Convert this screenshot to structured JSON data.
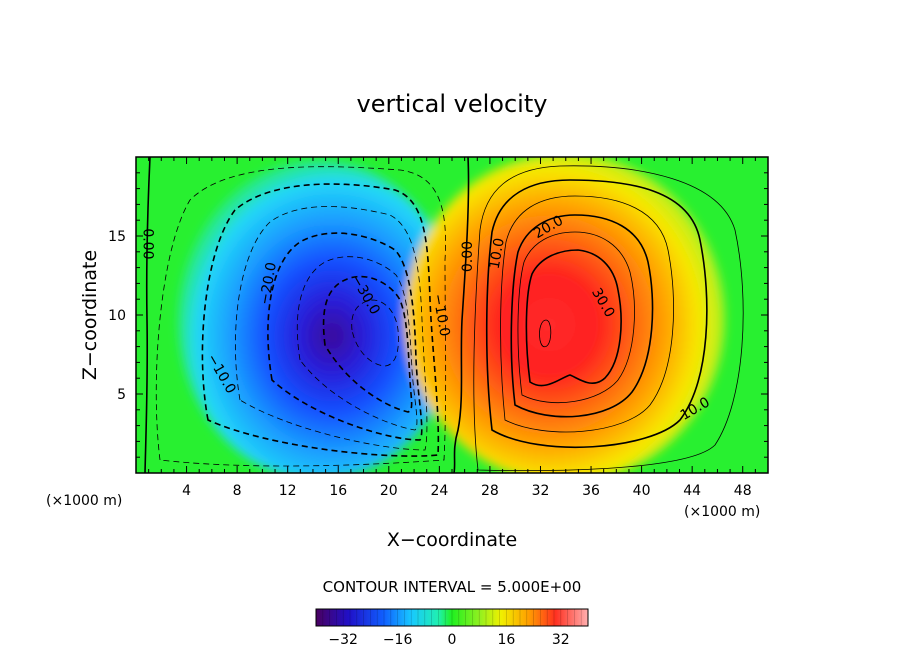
{
  "chart_data": {
    "type": "heatmap",
    "title": "vertical velocity",
    "xlabel": "X−coordinate",
    "ylabel": "Z−coordinate",
    "x_unit_left": "(×1000 m)",
    "x_unit_right": "(×1000 m)",
    "xlim": [
      0,
      50
    ],
    "ylim": [
      0,
      20
    ],
    "x_ticks": [
      "4",
      "8",
      "12",
      "16",
      "20",
      "24",
      "28",
      "32",
      "36",
      "40",
      "44",
      "48"
    ],
    "y_ticks": [
      "5",
      "10",
      "15"
    ],
    "contour_interval_text": "CONTOUR INTERVAL = 5.000E+00",
    "contour_interval": 5,
    "colorbar": {
      "range": [
        -40,
        40
      ],
      "ticks": [
        "−32",
        "−16",
        "0",
        "16",
        "32"
      ],
      "tick_values": [
        -32,
        -16,
        0,
        16,
        32
      ]
    },
    "cells": [
      {
        "name": "downdraft",
        "x": 19,
        "z": 9,
        "min": -35
      },
      {
        "name": "updraft",
        "x": 32,
        "z": 9,
        "max": 37
      }
    ],
    "contour_labels": [
      {
        "text": "0.00",
        "x": 1.0,
        "z": 14.5,
        "rot": 90
      },
      {
        "text": "−10.0",
        "x": 6.8,
        "z": 6.3,
        "rot": 60
      },
      {
        "text": "−20.0",
        "x": 10.4,
        "z": 12.0,
        "rot": -80
      },
      {
        "text": "−30.0",
        "x": 18.2,
        "z": 11.3,
        "rot": 60
      },
      {
        "text": "−10.0",
        "x": 24.2,
        "z": 10.0,
        "rot": 80
      },
      {
        "text": "0.00",
        "x": 26.2,
        "z": 13.7,
        "rot": -90
      },
      {
        "text": "10.0",
        "x": 28.5,
        "z": 13.9,
        "rot": -80
      },
      {
        "text": "20.0",
        "x": 32.6,
        "z": 15.6,
        "rot": -30
      },
      {
        "text": "30.0",
        "x": 37.0,
        "z": 10.8,
        "rot": 60
      },
      {
        "text": "10.0",
        "x": 44.2,
        "z": 4.1,
        "rot": -30
      }
    ]
  }
}
